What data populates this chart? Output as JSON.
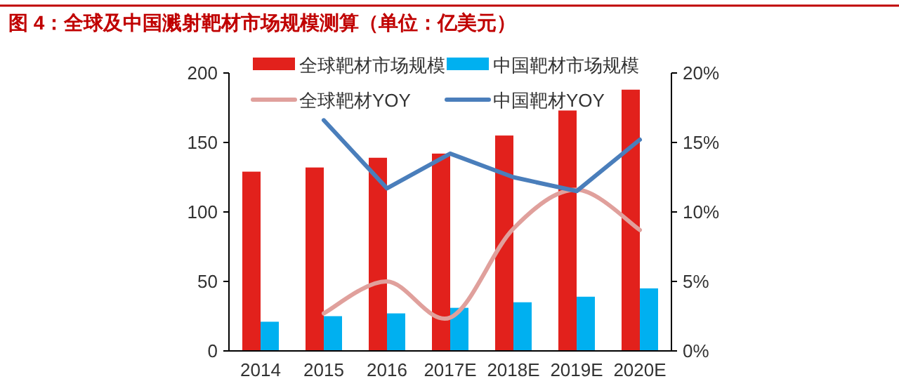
{
  "chart_data": {
    "type": "bar",
    "title": "图 4：全球及中国溅射靶材市场规模测算（单位：亿美元）",
    "categories": [
      "2014",
      "2015",
      "2016",
      "2017E",
      "2018E",
      "2019E",
      "2020E"
    ],
    "series": [
      {
        "name": "全球靶材市场规模",
        "color": "#e2211c",
        "values": [
          129,
          132,
          139,
          142,
          155,
          173,
          188
        ]
      },
      {
        "name": "中国靶材市场规模",
        "color": "#00b0f0",
        "values": [
          21,
          25,
          27,
          31,
          35,
          39,
          45
        ]
      },
      {
        "name": "全球靶材YOY",
        "type": "line",
        "axis": "y2",
        "color": "#e0a09c",
        "values": [
          null,
          2.7,
          5.0,
          2.4,
          8.8,
          11.6,
          8.7
        ]
      },
      {
        "name": "中国靶材YOY",
        "type": "line",
        "axis": "y2",
        "color": "#4a7ebb",
        "values": [
          null,
          16.6,
          11.7,
          14.2,
          12.5,
          11.5,
          15.2
        ]
      }
    ],
    "ylim": [
      0,
      200
    ],
    "yticks": [
      0,
      50,
      100,
      150,
      200
    ],
    "y2lim": [
      0,
      20
    ],
    "y2ticks": [
      {
        "value": 0,
        "label": "0%"
      },
      {
        "value": 5,
        "label": "5%"
      },
      {
        "value": 10,
        "label": "10%"
      },
      {
        "value": 15,
        "label": "15%"
      },
      {
        "value": 20,
        "label": "20%"
      }
    ],
    "legend": "top",
    "grid": false
  }
}
